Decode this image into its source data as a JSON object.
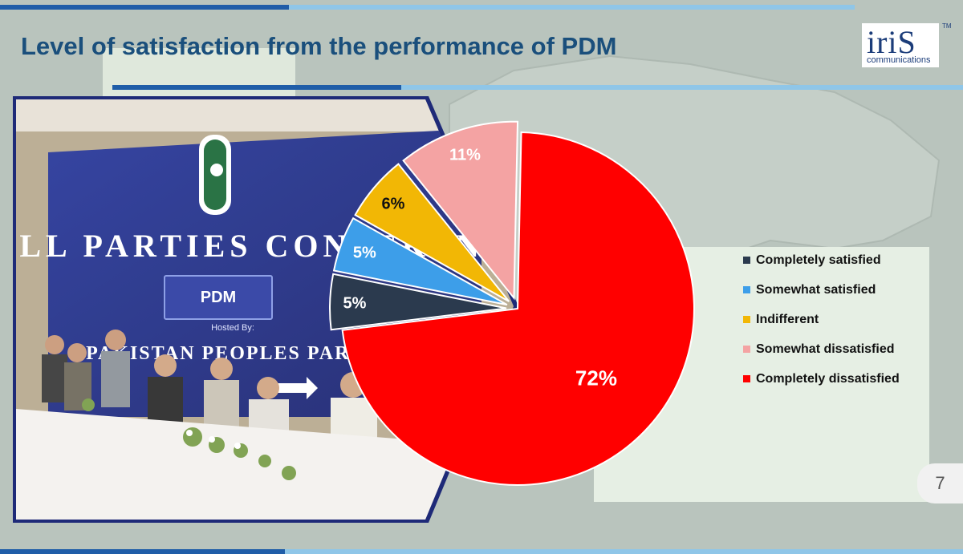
{
  "slide": {
    "title": "Level of satisfaction from the performance of PDM",
    "page_number": "7"
  },
  "logo": {
    "word": "iriS",
    "subtitle": "communications",
    "tm": "TM"
  },
  "photo": {
    "banner_text": "ALL PARTIES CONFERENCE",
    "badge_text": "PDM",
    "hosted_by": "Hosted By:",
    "host_name": "PAKISTAN PEOPLES PARTY"
  },
  "colors": {
    "title": "#1a4f7c",
    "bar_dark": "#1f5da8",
    "bar_light": "#8fc6e8"
  },
  "chart_data": {
    "type": "pie",
    "title": "",
    "categories": [
      "Completely satisfied",
      "Somewhat satisfied",
      "Indifferent",
      "Somewhat dissatisfied",
      "Completely dissatisfied"
    ],
    "values": [
      5,
      5,
      6,
      11,
      72
    ],
    "labels": [
      "5%",
      "5%",
      "6%",
      "11%",
      "72%"
    ],
    "colors": [
      "#2b3a4e",
      "#3d9ee9",
      "#f2b705",
      "#f4a3a3",
      "#ff0000"
    ],
    "label_colors": [
      "#ffffff",
      "#ffffff",
      "#111111",
      "#ffffff",
      "#ffffff"
    ],
    "legend_position": "right",
    "exploded": true
  }
}
